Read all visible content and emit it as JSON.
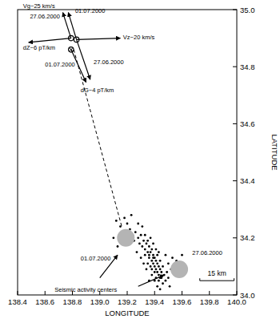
{
  "chart_data": {
    "type": "scatter",
    "xlabel": "LONGITUDE",
    "ylabel": "LATITUDE",
    "xlim": [
      138.4,
      140.0
    ],
    "ylim": [
      34.0,
      35.0
    ],
    "xticks": [
      138.4,
      138.6,
      138.8,
      {
        "value": 139,
        "label": "139.0"
      },
      139.2,
      139.4,
      139.6,
      139.8,
      {
        "value": 140,
        "label": "140.0"
      }
    ],
    "yticks": [
      {
        "value": 34,
        "label": "34.0"
      },
      34.2,
      34.4,
      34.6,
      34.8,
      {
        "value": 35,
        "label": "35.0"
      }
    ],
    "series": [
      {
        "color": "#000000",
        "marker": "dot",
        "x": [
          139.12,
          139.15,
          139.18,
          139.2,
          139.22,
          139.17,
          139.24,
          139.26,
          139.25,
          139.28,
          139.29,
          139.3,
          139.31,
          139.32,
          139.33,
          139.34,
          139.33,
          139.35,
          139.36,
          139.36,
          139.37,
          139.38,
          139.38,
          139.39,
          139.39,
          139.4,
          139.4,
          139.41,
          139.41,
          139.42,
          139.42,
          139.43,
          139.43,
          139.44,
          139.44,
          139.45,
          139.45,
          139.46,
          139.47,
          139.48,
          139.46,
          139.49,
          139.5,
          139.5,
          139.52,
          139.53,
          139.56,
          139.6,
          139.37,
          139.35,
          139.34,
          139.38,
          139.36,
          139.4,
          139.42,
          139.44,
          139.39,
          139.41,
          139.43,
          139.37,
          139.31,
          139.28,
          139.23,
          139.1,
          139.13,
          139.27,
          139.3,
          139.32,
          139.48,
          139.51,
          139.38,
          139.4,
          139.41,
          139.43,
          139.39,
          139.42,
          139.44,
          139.36,
          139.35,
          139.33
        ],
        "values": [
          34.26,
          34.24,
          34.27,
          34.25,
          34.23,
          34.22,
          34.21,
          34.22,
          34.19,
          34.2,
          34.18,
          34.21,
          34.17,
          34.19,
          34.16,
          34.18,
          34.14,
          34.15,
          34.17,
          34.13,
          34.15,
          34.12,
          34.16,
          34.14,
          34.11,
          34.13,
          34.1,
          34.12,
          34.09,
          34.11,
          34.08,
          34.1,
          34.07,
          34.09,
          34.12,
          34.08,
          34.06,
          34.1,
          34.07,
          34.05,
          34.04,
          34.08,
          34.06,
          34.11,
          34.09,
          34.13,
          34.12,
          34.14,
          34.1,
          34.11,
          34.09,
          34.07,
          34.05,
          34.05,
          34.03,
          34.02,
          34.18,
          34.16,
          34.15,
          34.2,
          34.24,
          34.25,
          34.28,
          34.2,
          34.17,
          34.15,
          34.13,
          34.11,
          34.14,
          34.03,
          34.09,
          34.08,
          34.06,
          34.05,
          34.13,
          34.14,
          34.06,
          34.14,
          34.19,
          34.21
        ]
      },
      {
        "color": "#b4b4b4",
        "marker": "circle",
        "x": [
          139.19,
          139.58
        ],
        "values": [
          34.2,
          34.09
        ]
      },
      {
        "color": "#000000",
        "marker": "circle-open",
        "x": [
          138.79,
          138.83
        ],
        "values": [
          34.9,
          34.895
        ]
      },
      {
        "color": "#000000",
        "marker": "circled-cross",
        "x": [
          138.79
        ],
        "values": [
          34.86
        ]
      }
    ],
    "lines": [
      {
        "x": [
          138.81,
          139.16
        ],
        "y": [
          34.86,
          34.24
        ],
        "line_style": "dashed"
      }
    ],
    "arrows": [
      {
        "x": 138.79,
        "y": 34.9,
        "x2": 138.73,
        "y2": 34.99
      },
      {
        "x": 138.83,
        "y": 34.895,
        "x2": 138.77,
        "y2": 34.99
      },
      {
        "x": 138.83,
        "y": 34.895,
        "x2": 139.15,
        "y2": 34.9
      },
      {
        "x": 138.79,
        "y": 34.9,
        "x2": 138.48,
        "y2": 34.885
      },
      {
        "x": 138.79,
        "y": 34.86,
        "x2": 138.9,
        "y2": 34.745
      },
      {
        "x": 138.83,
        "y": 34.895,
        "x2": 138.93,
        "y2": 34.755
      },
      {
        "x": 139.0,
        "y": 34.06,
        "x2": 139.13,
        "y2": 34.14
      },
      {
        "x": 139.28,
        "y": 34.03,
        "x2": 139.47,
        "y2": 34.07
      }
    ],
    "annotations": [
      {
        "text": "Vg~25 km/s",
        "x": 138.44,
        "y": 35.005
      },
      {
        "text": "01.07.2000",
        "x": 138.82,
        "y": 34.99
      },
      {
        "text": "27.06.2000",
        "x": 138.49,
        "y": 34.97
      },
      {
        "text": "Vz~20 km/s",
        "x": 139.17,
        "y": 34.895
      },
      {
        "text": "dZ~6 pT/km",
        "x": 138.44,
        "y": 34.86
      },
      {
        "text": "27.06.2000",
        "x": 138.955,
        "y": 34.81
      },
      {
        "text": "01.07.2000",
        "x": 138.6,
        "y": 34.8
      },
      {
        "text": "dG~4 pT/km",
        "x": 138.86,
        "y": 34.71
      },
      {
        "text": "01.07.2000",
        "x": 138.86,
        "y": 34.12
      },
      {
        "text": "27.06.2000",
        "x": 139.675,
        "y": 34.14
      },
      {
        "text": "Seismic activity centers",
        "x": 138.67,
        "y": 34.01
      }
    ],
    "scale_bar": {
      "label": "15 km",
      "x": 139.73,
      "x2": 139.98,
      "y": 34.05
    }
  }
}
